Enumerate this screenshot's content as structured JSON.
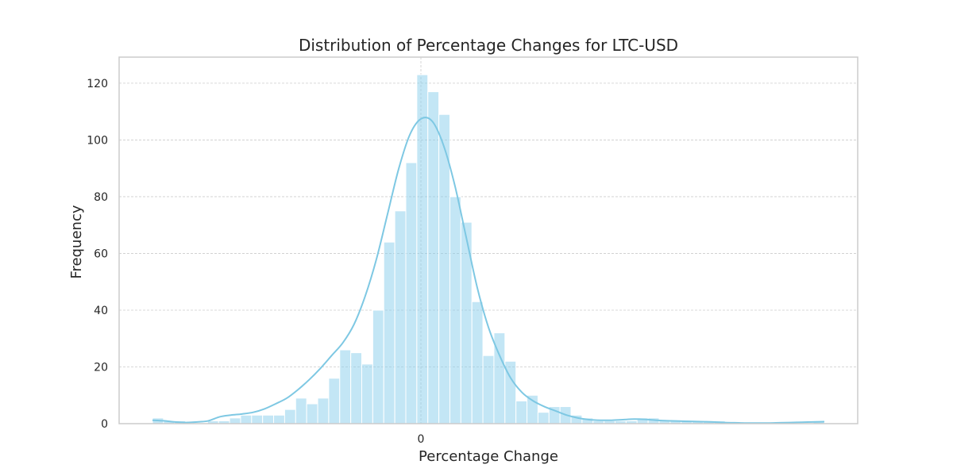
{
  "chart_data": {
    "type": "bar",
    "title": "Distribution of Percentage Changes for LTC-USD",
    "xlabel": "Percentage Change",
    "ylabel": "Frequency",
    "ylim": [
      0,
      129.2
    ],
    "y_ticks": [
      0,
      20,
      40,
      60,
      80,
      100,
      120
    ],
    "x_tick_labels": [
      "0"
    ],
    "grid": true,
    "bar_color": "#87ceeb",
    "kde_color": "#7ec8e3",
    "bin_counts": [
      2,
      1,
      1,
      0,
      0,
      1,
      1,
      2,
      3,
      3,
      3,
      3,
      5,
      9,
      7,
      9,
      16,
      26,
      25,
      21,
      40,
      64,
      75,
      92,
      123,
      117,
      109,
      80,
      71,
      43,
      24,
      32,
      22,
      8,
      10,
      4,
      6,
      6,
      3,
      2,
      1,
      1,
      1,
      1,
      2,
      2,
      1,
      1,
      1,
      1,
      1,
      1,
      0,
      0,
      0,
      0,
      0,
      0,
      0,
      0,
      1
    ],
    "kde_values": [
      1.2,
      1.0,
      0.6,
      0.4,
      0.6,
      1.0,
      2.4,
      3.0,
      3.4,
      4.0,
      5.2,
      7.0,
      9.0,
      12.0,
      15.5,
      19.5,
      24.0,
      28.5,
      35.0,
      45.0,
      58.0,
      74.0,
      90.0,
      102.0,
      107.5,
      106.5,
      98.0,
      84.0,
      66.0,
      48.0,
      34.0,
      24.0,
      16.0,
      11.0,
      8.0,
      6.0,
      4.5,
      3.0,
      2.0,
      1.4,
      1.2,
      1.2,
      1.4,
      1.6,
      1.5,
      1.2,
      1.0,
      0.9,
      0.8,
      0.7,
      0.6,
      0.4,
      0.3,
      0.2,
      0.2,
      0.2,
      0.3,
      0.4,
      0.5,
      0.6,
      0.7
    ]
  }
}
